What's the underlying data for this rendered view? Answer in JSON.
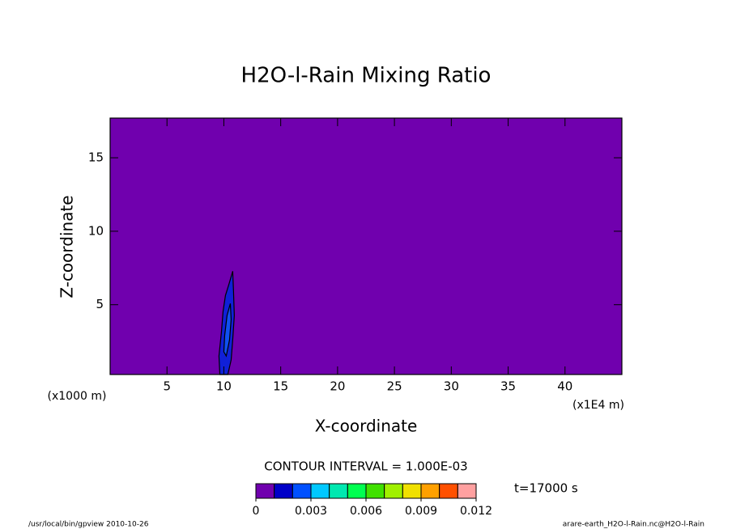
{
  "chart_data": {
    "type": "contour",
    "title": "H2O-l-Rain Mixing Ratio",
    "xlabel": "X-coordinate",
    "ylabel": "Z-coordinate",
    "xunit": "(x1E4 m)",
    "yunit": "(x1000 m)",
    "background": "#7000ae",
    "xlim": [
      0,
      45
    ],
    "xticks": [
      5,
      10,
      15,
      20,
      25,
      30,
      35,
      40
    ],
    "ylim": [
      0.25,
      17.7
    ],
    "yticks": [
      5,
      10,
      15
    ],
    "contours": [
      {
        "level": 0.001,
        "color": "#1020d8",
        "x": [
          10.43,
          10.78,
          10.85,
          10.92,
          10.78,
          10.64,
          10.35,
          9.65,
          9.57,
          9.79,
          9.93,
          10.14
        ],
        "y": [
          6.35,
          7.28,
          5.91,
          4.26,
          2.61,
          1.24,
          0.25,
          0.25,
          1.51,
          3.16,
          4.54,
          5.63
        ]
      },
      {
        "level": 0.002,
        "color": "#1050f0",
        "x": [
          10.21,
          10.5,
          10.64,
          10.57,
          10.28,
          10.07,
          10.0
        ],
        "y": [
          1.51,
          2.61,
          3.99,
          5.08,
          4.26,
          2.89,
          1.79
        ]
      }
    ],
    "contour_interval": "CONTOUR INTERVAL = 1.000E-03",
    "time": "t=17000 s",
    "colorbar": {
      "levels": [
        0,
        0.001,
        0.002,
        0.003,
        0.004,
        0.005,
        0.006,
        0.007,
        0.008,
        0.009,
        0.01,
        0.011,
        0.012
      ],
      "colors": [
        "#7000ae",
        "#0000c8",
        "#0050ff",
        "#00c8ff",
        "#00e8b0",
        "#00ff50",
        "#40e000",
        "#a0f000",
        "#f0e000",
        "#ffa000",
        "#ff5000",
        "#ff2020",
        "#ffa0a0"
      ],
      "ticks": [
        0,
        0.003,
        0.006,
        0.009,
        0.012
      ]
    },
    "footer_left": "/usr/local/bin/gpview  2010-10-26",
    "footer_right": "arare-earth_H2O-l-Rain.nc@H2O-l-Rain"
  }
}
